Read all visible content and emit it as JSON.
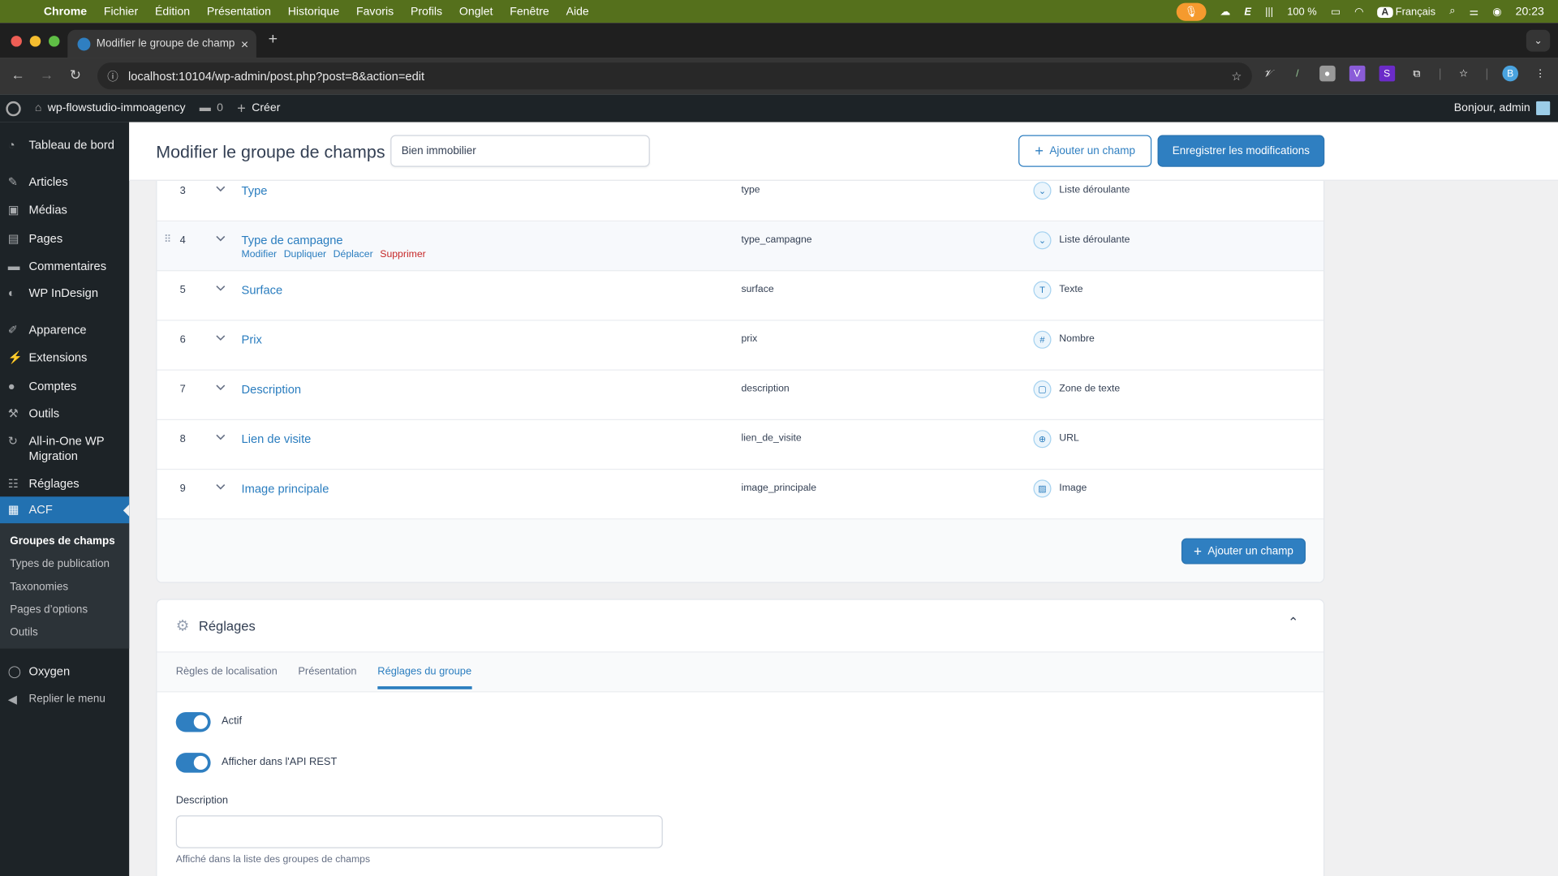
{
  "macos": {
    "app": "Chrome",
    "menus": [
      "Fichier",
      "Édition",
      "Présentation",
      "Historique",
      "Favoris",
      "Profils",
      "Onglet",
      "Fenêtre",
      "Aide"
    ],
    "battery": "100 %",
    "input_source_key": "A",
    "input_source": "Français",
    "time": "20:23"
  },
  "browser": {
    "tab_title": "Modifier le groupe de champs",
    "url": "localhost:10104/wp-admin/post.php?post=8&action=edit",
    "extensions": [
      "v-ext",
      "eyedropper",
      "camera",
      "vue-devtools",
      "S-ext",
      "puzzle-extensions",
      "bookmark",
      "profile"
    ]
  },
  "adminbar": {
    "site": "wp-flowstudio-immoagency",
    "comments": "0",
    "create": "Créer",
    "greeting": "Bonjour, admin"
  },
  "sidebar": {
    "items": [
      {
        "label": "Tableau de bord",
        "icon": "dashboard-icon"
      },
      {
        "label": "Articles",
        "icon": "pin-icon"
      },
      {
        "label": "Médias",
        "icon": "media-icon"
      },
      {
        "label": "Pages",
        "icon": "pages-icon"
      },
      {
        "label": "Commentaires",
        "icon": "comment-icon"
      },
      {
        "label": "WP InDesign",
        "icon": "palette-icon"
      },
      {
        "label": "Apparence",
        "icon": "brush-icon"
      },
      {
        "label": "Extensions",
        "icon": "plugin-icon"
      },
      {
        "label": "Comptes",
        "icon": "user-icon"
      },
      {
        "label": "Outils",
        "icon": "wrench-icon"
      },
      {
        "label": "All-in-One WP Migration",
        "icon": "migration-icon"
      },
      {
        "label": "Réglages",
        "icon": "settings-icon"
      },
      {
        "label": "ACF",
        "icon": "acf-icon"
      }
    ],
    "submenu": [
      "Groupes de champs",
      "Types de publication",
      "Taxonomies",
      "Pages d’options",
      "Outils"
    ],
    "oxygen": "Oxygen",
    "collapse": "Replier le menu"
  },
  "header": {
    "title": "Modifier le groupe de champs",
    "group_name": "Bien immobilier",
    "add_field": "Ajouter un champ",
    "save": "Enregistrer les modifications"
  },
  "fields": [
    {
      "n": "3",
      "label": "Type",
      "key": "type",
      "type": "Liste déroulante",
      "icon": "select-icon"
    },
    {
      "n": "4",
      "label": "Type de campagne",
      "key": "type_campagne",
      "type": "Liste déroulante",
      "icon": "select-icon",
      "actions": [
        "Modifier",
        "Dupliquer",
        "Déplacer",
        "Supprimer"
      ]
    },
    {
      "n": "5",
      "label": "Surface",
      "key": "surface",
      "type": "Texte",
      "icon": "text-icon"
    },
    {
      "n": "6",
      "label": "Prix",
      "key": "prix",
      "type": "Nombre",
      "icon": "number-icon"
    },
    {
      "n": "7",
      "label": "Description",
      "key": "description",
      "type": "Zone de texte",
      "icon": "textarea-icon"
    },
    {
      "n": "8",
      "label": "Lien de visite",
      "key": "lien_de_visite",
      "type": "URL",
      "icon": "globe-icon"
    },
    {
      "n": "9",
      "label": "Image principale",
      "key": "image_principale",
      "type": "Image",
      "icon": "image-icon"
    }
  ],
  "fields_footer": {
    "add_field": "Ajouter un champ"
  },
  "settings": {
    "title": "Réglages",
    "tabs": [
      "Règles de localisation",
      "Présentation",
      "Réglages du groupe"
    ],
    "active_tab": "Réglages du groupe",
    "toggles": [
      {
        "label": "Actif",
        "on": true
      },
      {
        "label": "Afficher dans l'API REST",
        "on": true
      }
    ],
    "description_label": "Description",
    "description_value": "",
    "description_help": "Affiché dans la liste des groupes de champs"
  },
  "colors": {
    "accent": "#2f7fc1",
    "menubar": "#55701c",
    "admin": "#1d2327",
    "active_menu": "#2271b1",
    "danger": "#c62828"
  }
}
